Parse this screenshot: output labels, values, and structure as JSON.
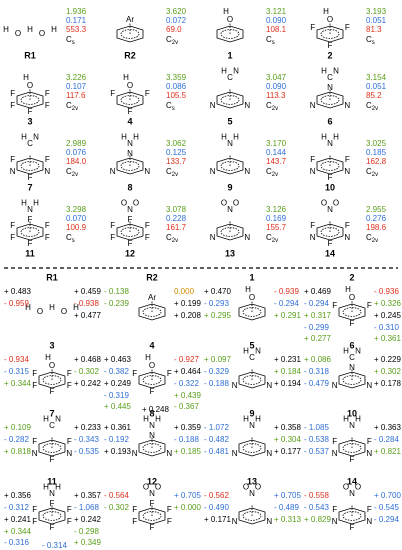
{
  "molecules": [
    {
      "label": "R1",
      "group": [
        "H",
        "O",
        "H",
        "O",
        "H"
      ],
      "ring": null,
      "values": [
        "1.936",
        "0.171",
        "553.3"
      ],
      "symmetry": "Cs",
      "charges": [
        {
          "text": "+ 0.459",
          "color": "black"
        },
        {
          "text": "+ 0.483",
          "color": "black"
        },
        {
          "text": "- 0.938",
          "color": "red"
        },
        {
          "text": "- 0.959",
          "color": "red"
        },
        {
          "text": "+ 0.477",
          "color": "black"
        }
      ]
    },
    {
      "label": "R2",
      "group": [
        "Ar"
      ],
      "ring": [
        null,
        null,
        null,
        null,
        null,
        null
      ],
      "values": [
        "3.620",
        "0.072",
        "69.0"
      ],
      "symmetry": "C2v",
      "charges": [
        {
          "text": "0.000",
          "color": "orange"
        },
        {
          "text": "- 0.138",
          "color": "green"
        },
        {
          "text": "+ 0.199",
          "color": "black"
        },
        {
          "text": "- 0.239",
          "color": "green"
        },
        {
          "text": "+ 0.208",
          "color": "black"
        }
      ]
    },
    {
      "label": "1",
      "group": [
        "H",
        "O"
      ],
      "ring": [
        null,
        null,
        null,
        null,
        null,
        null
      ],
      "values": [
        "3.121",
        "0.090",
        "108.1"
      ],
      "symmetry": "Cs",
      "charges": [
        {
          "text": "- 0.939",
          "color": "red"
        },
        {
          "text": "+ 0.470",
          "color": "black"
        },
        {
          "text": "- 0.294",
          "color": "blue"
        },
        {
          "text": "- 0.293",
          "color": "blue"
        },
        {
          "text": "+ 0.291",
          "color": "green"
        },
        {
          "text": "+ 0.295",
          "color": "green"
        }
      ]
    },
    {
      "label": "2",
      "group": [
        "H",
        "O"
      ],
      "ring": [
        null,
        "F",
        null,
        "F",
        null,
        "F"
      ],
      "values": [
        "3.193",
        "0.051",
        "81.3"
      ],
      "symmetry": "Cs",
      "charges": [
        {
          "text": "- 0.936",
          "color": "red"
        },
        {
          "text": "+ 0.469",
          "color": "black"
        },
        {
          "text": "+ 0.326",
          "color": "green"
        },
        {
          "text": "- 0.294",
          "color": "blue"
        },
        {
          "text": "+ 0.245",
          "color": "black"
        },
        {
          "text": "+ 0.317",
          "color": "green"
        },
        {
          "text": "- 0.310",
          "color": "blue"
        },
        {
          "text": "- 0.299",
          "color": "blue"
        },
        {
          "text": "+ 0.361",
          "color": "green"
        },
        {
          "text": "+ 0.277",
          "color": "green"
        }
      ]
    },
    {
      "label": "3",
      "group": [
        "H",
        "O"
      ],
      "ring": [
        null,
        "F",
        "F",
        "F",
        "F",
        "F"
      ],
      "values": [
        "3.226",
        "0.107",
        "117.6"
      ],
      "symmetry": "C2v",
      "charges": [
        {
          "text": "+ 0.468",
          "color": "black"
        },
        {
          "text": "- 0.934",
          "color": "red"
        },
        {
          "text": "- 0.302",
          "color": "green"
        },
        {
          "text": "- 0.315",
          "color": "blue"
        },
        {
          "text": "+ 0.242",
          "color": "black"
        },
        {
          "text": "+ 0.344",
          "color": "green"
        }
      ]
    },
    {
      "label": "4",
      "group": [
        "H",
        "O"
      ],
      "ring": [
        null,
        "F",
        null,
        "F",
        null,
        "F"
      ],
      "values": [
        "3.359",
        "0.086",
        "105.5"
      ],
      "symmetry": "Cs",
      "charges": [
        {
          "text": "- 0.927",
          "color": "red"
        },
        {
          "text": "+ 0.463",
          "color": "black"
        },
        {
          "text": "+ 0.464",
          "color": "black"
        },
        {
          "text": "- 0.382",
          "color": "blue"
        },
        {
          "text": "- 0.322",
          "color": "blue"
        },
        {
          "text": "+ 0.249",
          "color": "black"
        },
        {
          "text": "+ 0.439",
          "color": "green"
        },
        {
          "text": "- 0.319",
          "color": "blue"
        },
        {
          "text": "- 0.367",
          "color": "green"
        },
        {
          "text": "+ 0.445",
          "color": "green"
        },
        {
          "text": "+ 0.248",
          "color": "black"
        }
      ]
    },
    {
      "label": "5",
      "group": [
        "H",
        "C",
        "N"
      ],
      "ring": [
        null,
        null,
        "N",
        null,
        "N",
        null
      ],
      "values": [
        "3.047",
        "0.090",
        "113.3"
      ],
      "symmetry": "C2v",
      "charges": [
        {
          "text": "+ 0.231",
          "color": "black"
        },
        {
          "text": "+ 0.097",
          "color": "green"
        },
        {
          "text": "+ 0.184",
          "color": "green"
        },
        {
          "text": "- 0.329",
          "color": "blue"
        },
        {
          "text": "+ 0.194",
          "color": "black"
        },
        {
          "text": "- 0.188",
          "color": "blue"
        }
      ]
    },
    {
      "label": "6",
      "group": [
        "H",
        "C",
        "N"
      ],
      "ring": [
        "N",
        null,
        "N",
        null,
        "N",
        null
      ],
      "values": [
        "3.154",
        "0.051",
        "85.2"
      ],
      "symmetry": "C2v",
      "charges": [
        {
          "text": "+ 0.229",
          "color": "black"
        },
        {
          "text": "+ 0.086",
          "color": "green"
        },
        {
          "text": "+ 0.302",
          "color": "green"
        },
        {
          "text": "- 0.318",
          "color": "blue"
        },
        {
          "text": "+ 0.178",
          "color": "black"
        },
        {
          "text": "- 0.479",
          "color": "blue"
        }
      ]
    },
    {
      "label": "7",
      "group": [
        "H",
        "C",
        "N"
      ],
      "ring": [
        null,
        "F",
        "N",
        "F",
        "N",
        "F"
      ],
      "values": [
        "2.989",
        "0.076",
        "184.0"
      ],
      "symmetry": "C2v",
      "charges": [
        {
          "text": "+ 0.233",
          "color": "black"
        },
        {
          "text": "+ 0.109",
          "color": "green"
        },
        {
          "text": "- 0.343",
          "color": "blue"
        },
        {
          "text": "- 0.282",
          "color": "blue"
        },
        {
          "text": "- 0.535",
          "color": "blue"
        },
        {
          "text": "+ 0.818",
          "color": "green"
        }
      ]
    },
    {
      "label": "8",
      "group": [
        "H",
        "N",
        "H"
      ],
      "ring": [
        "N",
        null,
        "N",
        null,
        "N",
        null
      ],
      "values": [
        "3.062",
        "0.125",
        "133.7"
      ],
      "symmetry": "C2v",
      "charges": [
        {
          "text": "+ 0.359",
          "color": "black"
        },
        {
          "text": "+ 0.361",
          "color": "black"
        },
        {
          "text": "- 0.188",
          "color": "blue"
        },
        {
          "text": "- 0.192",
          "color": "blue"
        },
        {
          "text": "+ 0.185",
          "color": "green"
        },
        {
          "text": "+ 0.193",
          "color": "black"
        }
      ]
    },
    {
      "label": "9",
      "group": [
        "H",
        "N",
        "H"
      ],
      "ring": [
        null,
        null,
        "N",
        null,
        "N",
        null
      ],
      "values": [
        "3.170",
        "0.144",
        "143.7"
      ],
      "symmetry": "C2v",
      "charges": [
        {
          "text": "+ 0.358",
          "color": "black"
        },
        {
          "text": "- 1.072",
          "color": "blue"
        },
        {
          "text": "+ 0.304",
          "color": "green"
        },
        {
          "text": "- 0.482",
          "color": "blue"
        },
        {
          "text": "+ 0.177",
          "color": "black"
        },
        {
          "text": "- 0.481",
          "color": "blue"
        }
      ]
    },
    {
      "label": "10",
      "group": [
        "H",
        "N",
        "H"
      ],
      "ring": [
        null,
        "F",
        "N",
        "F",
        "N",
        "F"
      ],
      "values": [
        "3.025",
        "0.185",
        "162.8"
      ],
      "symmetry": "C2v",
      "charges": [
        {
          "text": "+ 0.363",
          "color": "black"
        },
        {
          "text": "- 1.085",
          "color": "blue"
        },
        {
          "text": "- 0.284",
          "color": "blue"
        },
        {
          "text": "- 0.538",
          "color": "blue"
        },
        {
          "text": "+ 0.821",
          "color": "green"
        },
        {
          "text": "- 0.537",
          "color": "blue"
        }
      ]
    },
    {
      "label": "11",
      "group": [
        "H",
        "N",
        "H"
      ],
      "ring": [
        "F",
        "F",
        "F",
        "F",
        "F",
        "F"
      ],
      "values": [
        "3.298",
        "0.070",
        "100.9"
      ],
      "symmetry": "Cs",
      "charges": [
        {
          "text": "+ 0.357",
          "color": "black"
        },
        {
          "text": "+ 0.356",
          "color": "black"
        },
        {
          "text": "- 1.068",
          "color": "blue"
        },
        {
          "text": "- 0.312",
          "color": "blue"
        },
        {
          "text": "+ 0.242",
          "color": "black"
        },
        {
          "text": "+ 0.241",
          "color": "black"
        },
        {
          "text": "- 0.298",
          "color": "green"
        },
        {
          "text": "+ 0.344",
          "color": "green"
        },
        {
          "text": "+ 0.349",
          "color": "green"
        },
        {
          "text": "- 0.316",
          "color": "blue"
        },
        {
          "text": "- 0.314",
          "color": "blue"
        }
      ]
    },
    {
      "label": "12",
      "group": [
        "O",
        "N",
        "O"
      ],
      "ring": [
        "F",
        "F",
        "F",
        "F",
        "F",
        "F"
      ],
      "values": [
        "3.078",
        "0.228",
        "161.7"
      ],
      "symmetry": "C2v",
      "charges": [
        {
          "text": "+ 0.705",
          "color": "blue"
        },
        {
          "text": "- 0.564",
          "color": "red"
        },
        {
          "text": "+ 0.000",
          "color": "green"
        },
        {
          "text": "- 0.302",
          "color": "green"
        }
      ]
    },
    {
      "label": "13",
      "group": [
        "O",
        "N",
        "O"
      ],
      "ring": [
        null,
        null,
        "N",
        null,
        "N",
        null
      ],
      "values": [
        "3.126",
        "0.169",
        "155.7"
      ],
      "symmetry": "C2v",
      "charges": [
        {
          "text": "+ 0.705",
          "color": "blue"
        },
        {
          "text": "- 0.562",
          "color": "red"
        },
        {
          "text": "- 0.489",
          "color": "blue"
        },
        {
          "text": "- 0.490",
          "color": "blue"
        },
        {
          "text": "+ 0.313",
          "color": "green"
        },
        {
          "text": "+ 0.171",
          "color": "black"
        }
      ]
    },
    {
      "label": "14",
      "group": [
        "O",
        "N",
        "O"
      ],
      "ring": [
        null,
        "F",
        "N",
        "F",
        "N",
        "F"
      ],
      "values": [
        "2.955",
        "0.276",
        "198.6"
      ],
      "symmetry": "C2v",
      "charges": [
        {
          "text": "+ 0.700",
          "color": "blue"
        },
        {
          "text": "- 0.558",
          "color": "red"
        },
        {
          "text": "- 0.545",
          "color": "blue"
        },
        {
          "text": "- 0.543",
          "color": "blue"
        },
        {
          "text": "- 0.294",
          "color": "blue"
        },
        {
          "text": "+ 0.829",
          "color": "green"
        }
      ]
    }
  ]
}
